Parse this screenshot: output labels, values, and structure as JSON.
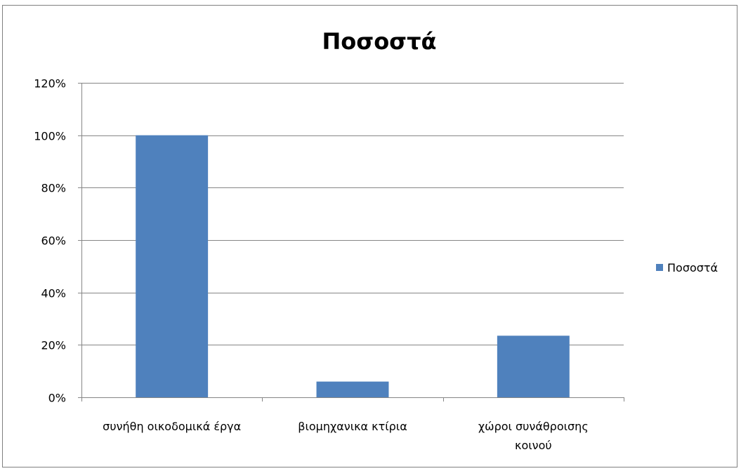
{
  "chart_data": {
    "type": "bar",
    "title": "Ποσοστά",
    "categories": [
      [
        "συνήθη οικοδομικά έργα"
      ],
      [
        "βιομηχανικα κτίρια"
      ],
      [
        "χώροι συνάθροισης",
        "κοινού"
      ]
    ],
    "series": [
      {
        "name": "Ποσοστά",
        "values": [
          1.0,
          0.06,
          0.235
        ]
      }
    ],
    "ylim": [
      0,
      1.2
    ],
    "yticks": [
      "0%",
      "20%",
      "40%",
      "60%",
      "80%",
      "100%",
      "120%"
    ],
    "grid": true,
    "legend": "right",
    "colors": {
      "bar": "#4f81bd",
      "grid": "#868686",
      "axis": "#868686",
      "frame": "#808080"
    }
  }
}
